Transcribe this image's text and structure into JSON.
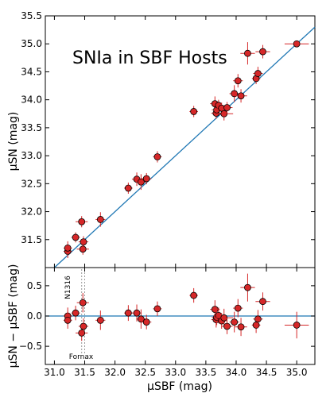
{
  "chart_data": [
    {
      "type": "scatter",
      "title": "SNIa in SBF Hosts",
      "xlabel": "μSBF (mag)",
      "ylabel": "μSN (mag)",
      "xlim": [
        30.85,
        35.3
      ],
      "ylim": [
        31.0,
        35.5
      ],
      "xticks": [
        31.0,
        31.5,
        32.0,
        32.5,
        33.0,
        33.5,
        34.0,
        34.5,
        35.0
      ],
      "yticks": [
        31.5,
        32.0,
        32.5,
        33.0,
        33.5,
        34.0,
        34.5,
        35.0,
        35.5
      ],
      "xtick_labels": [
        "31.0",
        "31.5",
        "32.0",
        "32.5",
        "33.0",
        "33.5",
        "34.0",
        "34.5",
        "35.0"
      ],
      "ytick_labels": [
        "31.5",
        "32.0",
        "32.5",
        "33.0",
        "33.5",
        "34.0",
        "34.5",
        "35.0",
        "35.5"
      ],
      "reference_line": "y = x",
      "grid": false,
      "colors": {
        "marker": "#d62728",
        "line": "#1f77b4",
        "error": "#d62728"
      },
      "series": [
        {
          "x": [
            31.22,
            31.22,
            31.35,
            31.45,
            31.48,
            31.47,
            31.76,
            32.22,
            32.36,
            32.43,
            32.52,
            32.7,
            33.3,
            33.65,
            33.67,
            33.68,
            33.71,
            33.76,
            33.8,
            33.85,
            33.97,
            34.03,
            34.08,
            34.19,
            34.33,
            34.36,
            34.44,
            35.0
          ],
          "y": [
            31.29,
            31.35,
            31.54,
            31.82,
            31.46,
            31.33,
            31.86,
            32.42,
            32.58,
            32.53,
            32.59,
            32.98,
            33.79,
            33.93,
            33.76,
            33.82,
            33.9,
            33.85,
            33.75,
            33.86,
            34.11,
            34.34,
            34.07,
            34.83,
            34.38,
            34.47,
            34.86,
            35.0
          ],
          "xerr": [
            0.07,
            0.07,
            0.07,
            0.1,
            0.08,
            0.1,
            0.08,
            0.07,
            0.08,
            0.08,
            0.08,
            0.07,
            0.07,
            0.08,
            0.08,
            0.08,
            0.08,
            0.08,
            0.15,
            0.09,
            0.08,
            0.08,
            0.1,
            0.12,
            0.07,
            0.08,
            0.12,
            0.2
          ],
          "yerr": [
            0.12,
            0.12,
            0.09,
            0.1,
            0.1,
            0.1,
            0.13,
            0.1,
            0.12,
            0.14,
            0.1,
            0.1,
            0.1,
            0.13,
            0.1,
            0.1,
            0.1,
            0.1,
            0.12,
            0.1,
            0.15,
            0.12,
            0.12,
            0.2,
            0.1,
            0.12,
            0.12,
            0.05
          ]
        }
      ]
    },
    {
      "type": "scatter",
      "xlabel": "μSBF (mag)",
      "ylabel": "μSN − μSBF (mag)",
      "xlim": [
        30.85,
        35.3
      ],
      "ylim": [
        -0.8,
        0.8
      ],
      "xticks": [
        31.0,
        31.5,
        32.0,
        32.5,
        33.0,
        33.5,
        34.0,
        34.5,
        35.0
      ],
      "yticks": [
        -0.5,
        0.0,
        0.5
      ],
      "xtick_labels": [
        "31.0",
        "31.5",
        "32.0",
        "32.5",
        "33.0",
        "33.5",
        "34.0",
        "34.5",
        "35.0"
      ],
      "ytick_labels": [
        "−0.5",
        "0.0",
        "0.5"
      ],
      "reference_line": "y = 0",
      "vlines": [
        31.45,
        31.5
      ],
      "annotations": [
        {
          "text": "N1316",
          "x": 31.38,
          "y": 0.48,
          "rotation": 90
        },
        {
          "text": "Fornax",
          "x": 31.47,
          "y": -0.7
        }
      ],
      "grid": false,
      "series": [
        {
          "x": [
            31.22,
            31.22,
            31.35,
            31.45,
            31.48,
            31.47,
            31.76,
            32.22,
            32.36,
            32.43,
            32.52,
            32.7,
            33.3,
            33.65,
            33.67,
            33.68,
            33.71,
            33.76,
            33.8,
            33.85,
            33.97,
            34.03,
            34.08,
            34.19,
            34.33,
            34.36,
            34.44,
            35.0
          ],
          "y": [
            0.0,
            -0.07,
            0.05,
            -0.28,
            -0.17,
            0.22,
            -0.07,
            0.05,
            0.05,
            -0.05,
            -0.1,
            0.12,
            0.34,
            0.11,
            -0.06,
            -0.02,
            0.01,
            -0.08,
            -0.03,
            -0.17,
            -0.1,
            0.13,
            -0.18,
            0.47,
            -0.15,
            -0.05,
            0.24,
            -0.15
          ],
          "xerr": [
            0.07,
            0.07,
            0.07,
            0.1,
            0.08,
            0.1,
            0.08,
            0.07,
            0.08,
            0.08,
            0.08,
            0.07,
            0.07,
            0.08,
            0.08,
            0.08,
            0.08,
            0.08,
            0.15,
            0.09,
            0.08,
            0.08,
            0.1,
            0.12,
            0.07,
            0.08,
            0.12,
            0.2
          ],
          "yerr": [
            0.14,
            0.14,
            0.12,
            0.13,
            0.13,
            0.16,
            0.16,
            0.13,
            0.14,
            0.16,
            0.12,
            0.12,
            0.12,
            0.15,
            0.13,
            0.13,
            0.13,
            0.13,
            0.15,
            0.13,
            0.17,
            0.15,
            0.15,
            0.23,
            0.13,
            0.15,
            0.15,
            0.22
          ]
        }
      ]
    }
  ]
}
